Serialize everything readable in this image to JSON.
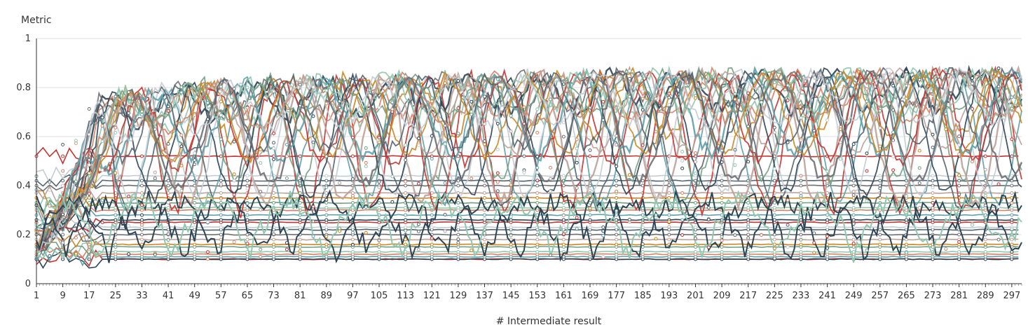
{
  "chart_data": {
    "type": "line",
    "title": "",
    "ylabel": "Metric",
    "xlabel": "# Intermediate result",
    "ylim": [
      0,
      1
    ],
    "y_ticks": [
      "0",
      "0.2",
      "0.4",
      "0.6",
      "0.8",
      "1"
    ],
    "y_tick_values": [
      0,
      0.2,
      0.4,
      0.6,
      0.8,
      1
    ],
    "x_ticks": [
      "1",
      "9",
      "17",
      "25",
      "33",
      "41",
      "49",
      "57",
      "65",
      "73",
      "81",
      "89",
      "97",
      "105",
      "113",
      "121",
      "129",
      "137",
      "145",
      "153",
      "161",
      "169",
      "177",
      "185",
      "193",
      "201",
      "209",
      "217",
      "225",
      "233",
      "241",
      "249",
      "257",
      "265",
      "273",
      "281",
      "289",
      "297"
    ],
    "x_range": [
      1,
      300
    ],
    "grid": "horizontal",
    "legend": "none",
    "palette": [
      "#c23531",
      "#2f4554",
      "#61a0a8",
      "#d48265",
      "#91c7ae",
      "#749f83",
      "#ca8622",
      "#bda29a",
      "#6e7074",
      "#546570",
      "#c4ccd3"
    ],
    "series_trend": {
      "upper_envelope": [
        [
          1,
          0.45
        ],
        [
          9,
          0.62
        ],
        [
          17,
          0.74
        ],
        [
          25,
          0.78
        ],
        [
          33,
          0.8
        ],
        [
          41,
          0.81
        ],
        [
          57,
          0.83
        ],
        [
          81,
          0.84
        ],
        [
          113,
          0.85
        ],
        [
          153,
          0.86
        ],
        [
          177,
          0.87
        ],
        [
          233,
          0.87
        ],
        [
          297,
          0.88
        ]
      ],
      "lower_floor": 0.1
    }
  }
}
